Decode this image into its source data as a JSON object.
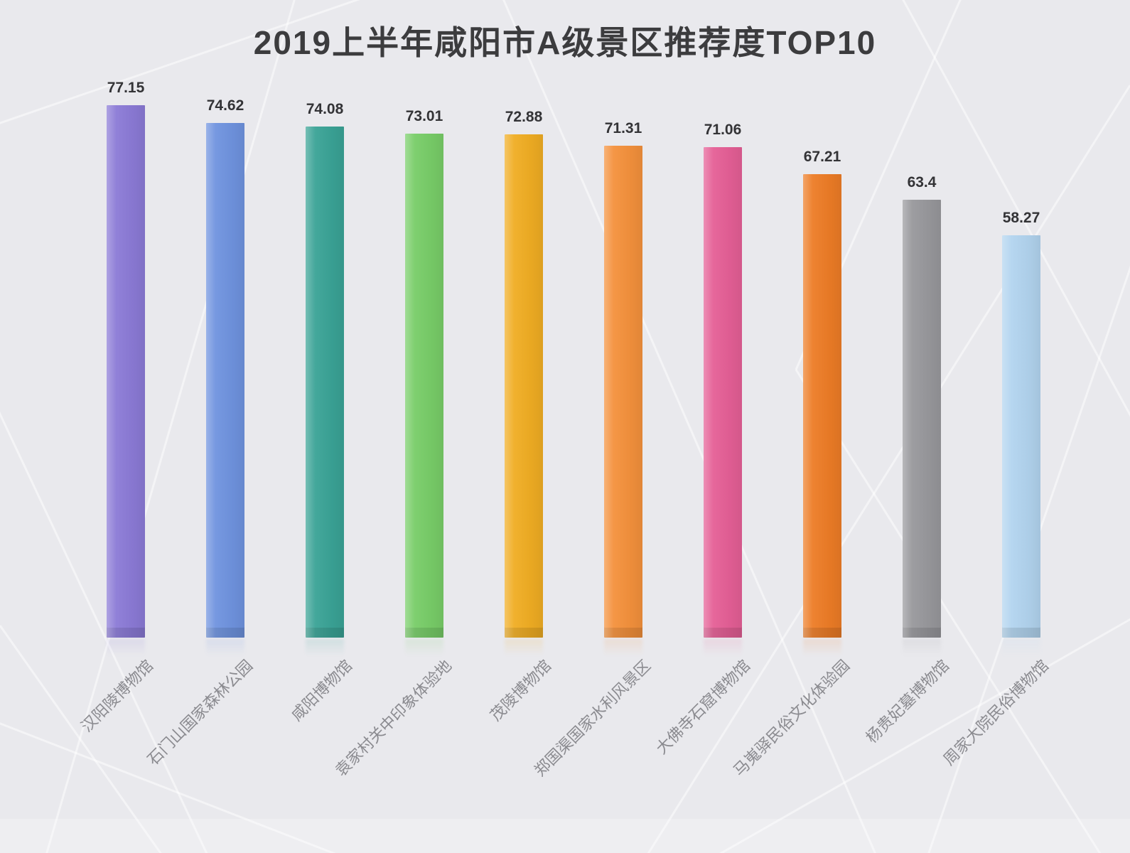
{
  "page": {
    "background_color": "#e9e9ed"
  },
  "chart_data": {
    "type": "bar",
    "title": "2019上半年咸阳市A级景区推荐度TOP10",
    "categories": [
      "汉阳陵博物馆",
      "石门山国家森林公园",
      "咸阳博物馆",
      "袁家村关中印象体验地",
      "茂陵博物馆",
      "郑国渠国家水利风景区",
      "大佛寺石窟博物馆",
      "马嵬驿民俗文化体验园",
      "杨贵妃墓博物馆",
      "周家大院民俗博物馆"
    ],
    "values": [
      77.15,
      74.62,
      74.08,
      73.01,
      72.88,
      71.31,
      71.06,
      67.21,
      63.4,
      58.27
    ],
    "value_labels": [
      "77.15",
      "74.62",
      "74.08",
      "73.01",
      "72.88",
      "71.31",
      "71.06",
      "67.21",
      "63.4",
      "58.27"
    ],
    "bar_colors": [
      "#8b7ad6",
      "#6f93df",
      "#3aa396",
      "#78cd68",
      "#f0ad23",
      "#f4913c",
      "#e55f96",
      "#ed7c26",
      "#98989c",
      "#b2d4ef"
    ],
    "title_color": "#3c3c3e",
    "value_label_color": "#333336",
    "category_label_color": "#8b8b90",
    "xlabel": "",
    "ylabel": "",
    "ylim": [
      0,
      80
    ],
    "grid": false,
    "legend": "none",
    "value_labels_shown": true,
    "category_label_rotation_deg": 45
  }
}
